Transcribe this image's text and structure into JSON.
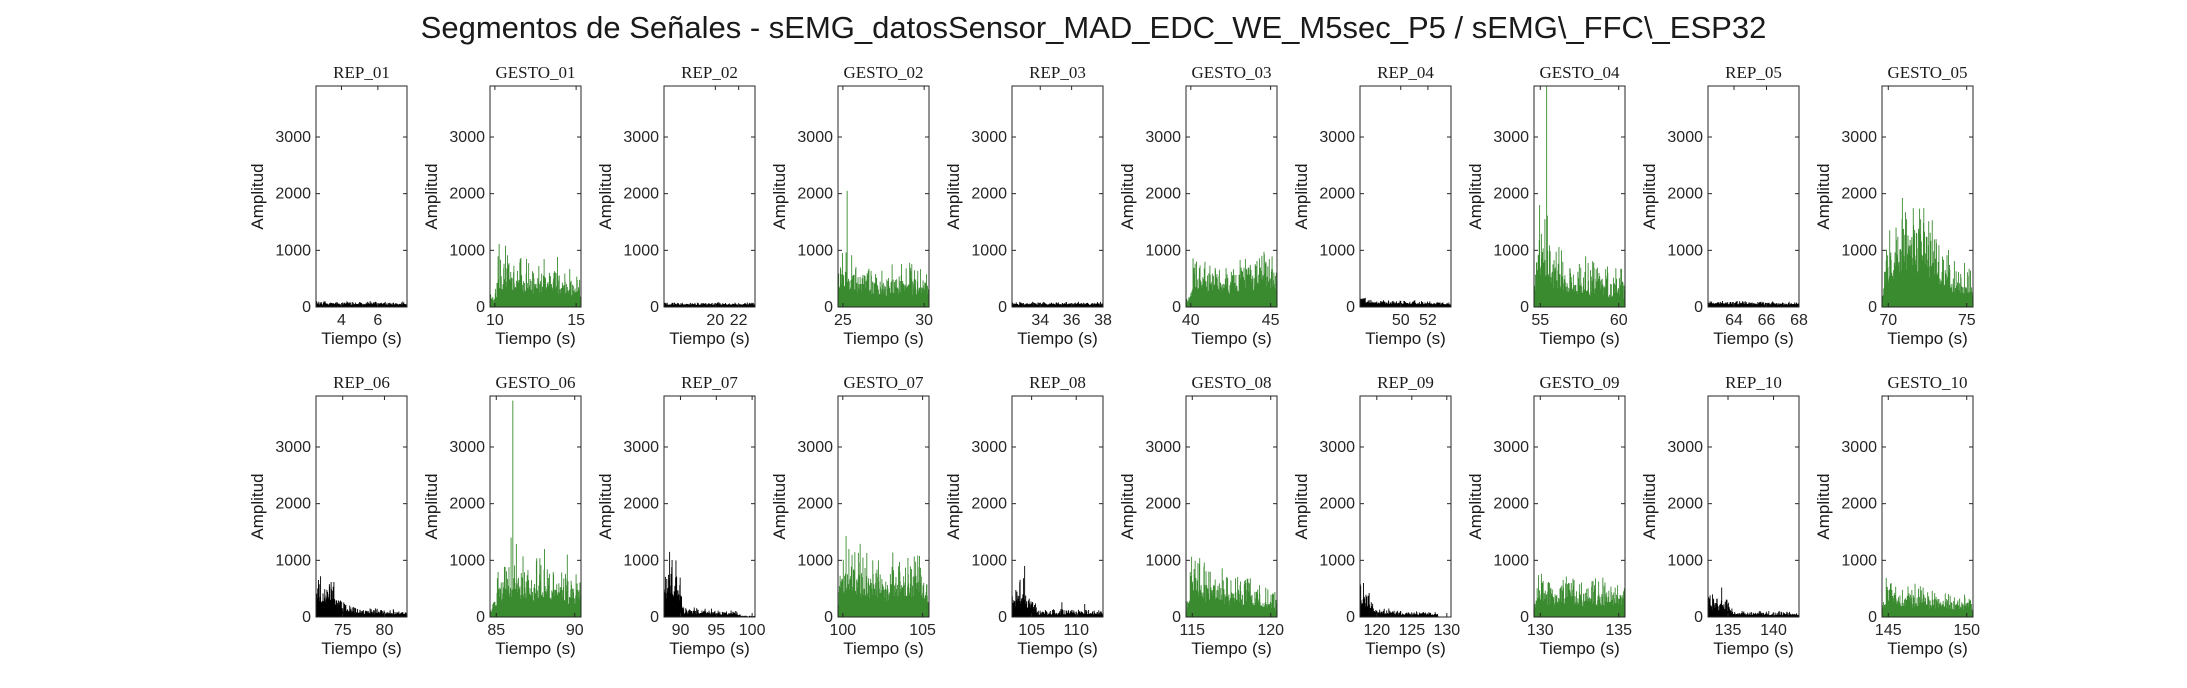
{
  "figure": {
    "title": "Segmentos de Señales - sEMG_datosSensor_MAD_EDC_WE_M5sec_P5 / sEMG\\_FFC\\_ESP32"
  },
  "colors": {
    "rep": "#000000",
    "gesto": "#3a8a30",
    "axis": "#262626"
  },
  "chart_data": [
    {
      "type": "area",
      "title": "REP_01",
      "kind": "rep",
      "xlim": [
        2.6,
        7.6
      ],
      "xticks": [
        4,
        6
      ],
      "ylim": [
        0,
        3900
      ],
      "yticks": [
        0,
        1000,
        2000,
        3000
      ],
      "xlabel": "Tiempo (s)",
      "ylabel": "Amplitud",
      "profile": [
        [
          0,
          60
        ],
        [
          1,
          60
        ]
      ],
      "noise": 0.35,
      "spikes": []
    },
    {
      "type": "area",
      "title": "GESTO_01",
      "kind": "gesto",
      "xlim": [
        9.7,
        15.3
      ],
      "xticks": [
        10,
        15
      ],
      "ylim": [
        0,
        3900
      ],
      "yticks": [
        0,
        1000,
        2000,
        3000
      ],
      "xlabel": "Tiempo (s)",
      "ylabel": "Amplitud",
      "profile": [
        [
          0,
          120
        ],
        [
          0.05,
          120
        ],
        [
          0.1,
          600
        ],
        [
          0.3,
          500
        ],
        [
          0.6,
          420
        ],
        [
          0.85,
          380
        ],
        [
          1,
          300
        ]
      ],
      "noise": 0.5,
      "spikes": [
        [
          0.17,
          1080
        ],
        [
          0.4,
          850
        ],
        [
          0.74,
          880
        ]
      ]
    },
    {
      "type": "area",
      "title": "REP_02",
      "kind": "rep",
      "xlim": [
        15.6,
        23.4
      ],
      "xticks": [
        20,
        22
      ],
      "ylim": [
        0,
        3900
      ],
      "yticks": [
        0,
        1000,
        2000,
        3000
      ],
      "xlabel": "Tiempo (s)",
      "ylabel": "Amplitud",
      "profile": [
        [
          0,
          50
        ],
        [
          1,
          50
        ]
      ],
      "noise": 0.35,
      "spikes": []
    },
    {
      "type": "area",
      "title": "GESTO_02",
      "kind": "gesto",
      "xlim": [
        24.7,
        30.3
      ],
      "xticks": [
        25,
        30
      ],
      "ylim": [
        0,
        3900
      ],
      "yticks": [
        0,
        1000,
        2000,
        3000
      ],
      "xlabel": "Tiempo (s)",
      "ylabel": "Amplitud",
      "profile": [
        [
          0,
          250
        ],
        [
          0.03,
          700
        ],
        [
          0.15,
          550
        ],
        [
          0.5,
          380
        ],
        [
          0.85,
          420
        ],
        [
          1,
          330
        ]
      ],
      "noise": 0.5,
      "spikes": [
        [
          0.1,
          2050
        ],
        [
          0.05,
          950
        ],
        [
          0.8,
          640
        ]
      ]
    },
    {
      "type": "area",
      "title": "REP_03",
      "kind": "rep",
      "xlim": [
        32.2,
        38.0
      ],
      "xticks": [
        34,
        36,
        38
      ],
      "ylim": [
        0,
        3900
      ],
      "yticks": [
        0,
        1000,
        2000,
        3000
      ],
      "xlabel": "Tiempo (s)",
      "ylabel": "Amplitud",
      "profile": [
        [
          0,
          55
        ],
        [
          1,
          55
        ]
      ],
      "noise": 0.35,
      "spikes": []
    },
    {
      "type": "area",
      "title": "GESTO_03",
      "kind": "gesto",
      "xlim": [
        39.7,
        45.4
      ],
      "xticks": [
        40,
        45
      ],
      "ylim": [
        0,
        3900
      ],
      "yticks": [
        0,
        1000,
        2000,
        3000
      ],
      "xlabel": "Tiempo (s)",
      "ylabel": "Amplitud",
      "profile": [
        [
          0,
          100
        ],
        [
          0.04,
          100
        ],
        [
          0.08,
          550
        ],
        [
          0.3,
          480
        ],
        [
          0.6,
          450
        ],
        [
          0.88,
          600
        ],
        [
          1,
          400
        ]
      ],
      "noise": 0.5,
      "spikes": [
        [
          0.5,
          2200
        ],
        [
          0.86,
          930
        ]
      ]
    },
    {
      "type": "area",
      "title": "REP_04",
      "kind": "rep",
      "xlim": [
        47.0,
        53.7
      ],
      "xticks": [
        50,
        52
      ],
      "ylim": [
        0,
        3900
      ],
      "yticks": [
        0,
        1000,
        2000,
        3000
      ],
      "xlabel": "Tiempo (s)",
      "ylabel": "Amplitud",
      "profile": [
        [
          0,
          120
        ],
        [
          0.15,
          90
        ],
        [
          1,
          50
        ]
      ],
      "noise": 0.35,
      "spikes": []
    },
    {
      "type": "area",
      "title": "GESTO_04",
      "kind": "gesto",
      "xlim": [
        54.6,
        60.4
      ],
      "xticks": [
        55,
        60
      ],
      "ylim": [
        0,
        3900
      ],
      "yticks": [
        0,
        1000,
        2000,
        3000
      ],
      "xlabel": "Tiempo (s)",
      "ylabel": "Amplitud",
      "profile": [
        [
          0,
          200
        ],
        [
          0.05,
          900
        ],
        [
          0.15,
          800
        ],
        [
          0.35,
          550
        ],
        [
          0.6,
          420
        ],
        [
          1,
          330
        ]
      ],
      "noise": 0.55,
      "spikes": [
        [
          0.14,
          3900
        ],
        [
          0.12,
          1550
        ],
        [
          0.3,
          1000
        ]
      ]
    },
    {
      "type": "area",
      "title": "REP_05",
      "kind": "rep",
      "xlim": [
        62.4,
        68.0
      ],
      "xticks": [
        64,
        66,
        68
      ],
      "ylim": [
        0,
        3900
      ],
      "yticks": [
        0,
        1000,
        2000,
        3000
      ],
      "xlabel": "Tiempo (s)",
      "ylabel": "Amplitud",
      "profile": [
        [
          0,
          70
        ],
        [
          1,
          55
        ]
      ],
      "noise": 0.35,
      "spikes": []
    },
    {
      "type": "area",
      "title": "GESTO_05",
      "kind": "gesto",
      "xlim": [
        69.6,
        75.4
      ],
      "xticks": [
        70,
        75
      ],
      "ylim": [
        0,
        3900
      ],
      "yticks": [
        0,
        1000,
        2000,
        3000
      ],
      "xlabel": "Tiempo (s)",
      "ylabel": "Amplitud",
      "profile": [
        [
          0,
          100
        ],
        [
          0.05,
          700
        ],
        [
          0.2,
          1100
        ],
        [
          0.45,
          1050
        ],
        [
          0.6,
          700
        ],
        [
          0.8,
          450
        ],
        [
          1,
          350
        ]
      ],
      "noise": 0.5,
      "spikes": [
        [
          0.22,
          1550
        ],
        [
          0.4,
          1380
        ]
      ]
    },
    {
      "type": "area",
      "title": "REP_06",
      "kind": "rep",
      "xlim": [
        71.8,
        82.7
      ],
      "xticks": [
        75,
        80
      ],
      "ylim": [
        0,
        3900
      ],
      "yticks": [
        0,
        1000,
        2000,
        3000
      ],
      "xlabel": "Tiempo (s)",
      "ylabel": "Amplitud",
      "profile": [
        [
          0,
          450
        ],
        [
          0.2,
          380
        ],
        [
          0.3,
          150
        ],
        [
          0.5,
          100
        ],
        [
          1,
          70
        ]
      ],
      "noise": 0.45,
      "spikes": [
        [
          0.05,
          720
        ]
      ]
    },
    {
      "type": "area",
      "title": "GESTO_06",
      "kind": "gesto",
      "xlim": [
        84.6,
        90.4
      ],
      "xticks": [
        85,
        90
      ],
      "ylim": [
        0,
        3900
      ],
      "yticks": [
        0,
        1000,
        2000,
        3000
      ],
      "xlabel": "Tiempo (s)",
      "ylabel": "Amplitud",
      "profile": [
        [
          0,
          100
        ],
        [
          0.05,
          200
        ],
        [
          0.18,
          800
        ],
        [
          0.3,
          650
        ],
        [
          0.55,
          500
        ],
        [
          0.8,
          500
        ],
        [
          1,
          450
        ]
      ],
      "noise": 0.55,
      "spikes": [
        [
          0.25,
          3820
        ],
        [
          0.23,
          1400
        ],
        [
          0.6,
          1200
        ],
        [
          0.85,
          1100
        ]
      ]
    },
    {
      "type": "area",
      "title": "REP_07",
      "kind": "rep",
      "xlim": [
        87.7,
        100.4
      ],
      "xticks": [
        90,
        95,
        100
      ],
      "ylim": [
        0,
        3900
      ],
      "yticks": [
        0,
        1000,
        2000,
        3000
      ],
      "xlabel": "Tiempo (s)",
      "ylabel": "Amplitud",
      "profile": [
        [
          0,
          600
        ],
        [
          0.15,
          500
        ],
        [
          0.22,
          100
        ],
        [
          0.45,
          80
        ],
        [
          0.8,
          60
        ],
        [
          0.85,
          20
        ],
        [
          1,
          10
        ]
      ],
      "noise": 0.5,
      "spikes": [
        [
          0.06,
          1150
        ],
        [
          0.13,
          1000
        ]
      ]
    },
    {
      "type": "area",
      "title": "GESTO_07",
      "kind": "gesto",
      "xlim": [
        99.7,
        105.4
      ],
      "xticks": [
        100,
        105
      ],
      "ylim": [
        0,
        3900
      ],
      "yticks": [
        0,
        1000,
        2000,
        3000
      ],
      "xlabel": "Tiempo (s)",
      "ylabel": "Amplitud",
      "profile": [
        [
          0,
          250
        ],
        [
          0.07,
          850
        ],
        [
          0.2,
          700
        ],
        [
          0.5,
          550
        ],
        [
          0.85,
          650
        ],
        [
          1,
          350
        ]
      ],
      "noise": 0.5,
      "spikes": [
        [
          0.12,
          1200
        ],
        [
          0.88,
          880
        ]
      ]
    },
    {
      "type": "area",
      "title": "REP_08",
      "kind": "rep",
      "xlim": [
        102.8,
        113.0
      ],
      "xticks": [
        105,
        110
      ],
      "ylim": [
        0,
        3900
      ],
      "yticks": [
        0,
        1000,
        2000,
        3000
      ],
      "xlabel": "Tiempo (s)",
      "ylabel": "Amplitud",
      "profile": [
        [
          0,
          300
        ],
        [
          0.12,
          450
        ],
        [
          0.2,
          200
        ],
        [
          0.3,
          60
        ],
        [
          0.55,
          80
        ],
        [
          1,
          60
        ]
      ],
      "noise": 0.5,
      "spikes": [
        [
          0.14,
          900
        ],
        [
          0.55,
          260
        ],
        [
          0.8,
          230
        ]
      ]
    },
    {
      "type": "area",
      "title": "GESTO_08",
      "kind": "gesto",
      "xlim": [
        114.6,
        120.4
      ],
      "xticks": [
        115,
        120
      ],
      "ylim": [
        0,
        3900
      ],
      "yticks": [
        0,
        1000,
        2000,
        3000
      ],
      "xlabel": "Tiempo (s)",
      "ylabel": "Amplitud",
      "profile": [
        [
          0,
          80
        ],
        [
          0.06,
          600
        ],
        [
          0.2,
          500
        ],
        [
          0.5,
          400
        ],
        [
          0.85,
          350
        ],
        [
          1,
          200
        ]
      ],
      "noise": 0.5,
      "spikes": [
        [
          0.13,
          950
        ],
        [
          0.25,
          800
        ]
      ]
    },
    {
      "type": "area",
      "title": "REP_09",
      "kind": "rep",
      "xlim": [
        117.6,
        130.6
      ],
      "xticks": [
        120,
        125,
        130
      ],
      "ylim": [
        0,
        3900
      ],
      "yticks": [
        0,
        1000,
        2000,
        3000
      ],
      "xlabel": "Tiempo (s)",
      "ylabel": "Amplitud",
      "profile": [
        [
          0,
          350
        ],
        [
          0.08,
          300
        ],
        [
          0.18,
          100
        ],
        [
          0.4,
          60
        ],
        [
          0.85,
          50
        ],
        [
          0.86,
          0
        ],
        [
          1,
          0
        ]
      ],
      "noise": 0.5,
      "spikes": [
        [
          0.04,
          600
        ]
      ]
    },
    {
      "type": "area",
      "title": "GESTO_09",
      "kind": "gesto",
      "xlim": [
        129.6,
        135.4
      ],
      "xticks": [
        130,
        135
      ],
      "ylim": [
        0,
        3900
      ],
      "yticks": [
        0,
        1000,
        2000,
        3000
      ],
      "xlabel": "Tiempo (s)",
      "ylabel": "Amplitud",
      "profile": [
        [
          0,
          80
        ],
        [
          0.05,
          420
        ],
        [
          0.3,
          380
        ],
        [
          0.7,
          360
        ],
        [
          1,
          280
        ]
      ],
      "noise": 0.5,
      "spikes": [
        [
          0.08,
          760
        ],
        [
          0.92,
          560
        ]
      ]
    },
    {
      "type": "area",
      "title": "REP_10",
      "kind": "rep",
      "xlim": [
        132.8,
        142.8
      ],
      "xticks": [
        135,
        140
      ],
      "ylim": [
        0,
        3900
      ],
      "yticks": [
        0,
        1000,
        2000,
        3000
      ],
      "xlabel": "Tiempo (s)",
      "ylabel": "Amplitud",
      "profile": [
        [
          0,
          250
        ],
        [
          0.2,
          200
        ],
        [
          0.3,
          60
        ],
        [
          1,
          50
        ]
      ],
      "noise": 0.5,
      "spikes": [
        [
          0.15,
          520
        ],
        [
          0.05,
          400
        ]
      ]
    },
    {
      "type": "area",
      "title": "GESTO_10",
      "kind": "gesto",
      "xlim": [
        144.6,
        150.4
      ],
      "xticks": [
        145,
        150
      ],
      "ylim": [
        0,
        3900
      ],
      "yticks": [
        0,
        1000,
        2000,
        3000
      ],
      "xlabel": "Tiempo (s)",
      "ylabel": "Amplitud",
      "profile": [
        [
          0,
          80
        ],
        [
          0.05,
          380
        ],
        [
          0.3,
          320
        ],
        [
          0.7,
          250
        ],
        [
          1,
          200
        ]
      ],
      "noise": 0.5,
      "spikes": [
        [
          0.1,
          600
        ],
        [
          0.45,
          520
        ]
      ]
    }
  ]
}
